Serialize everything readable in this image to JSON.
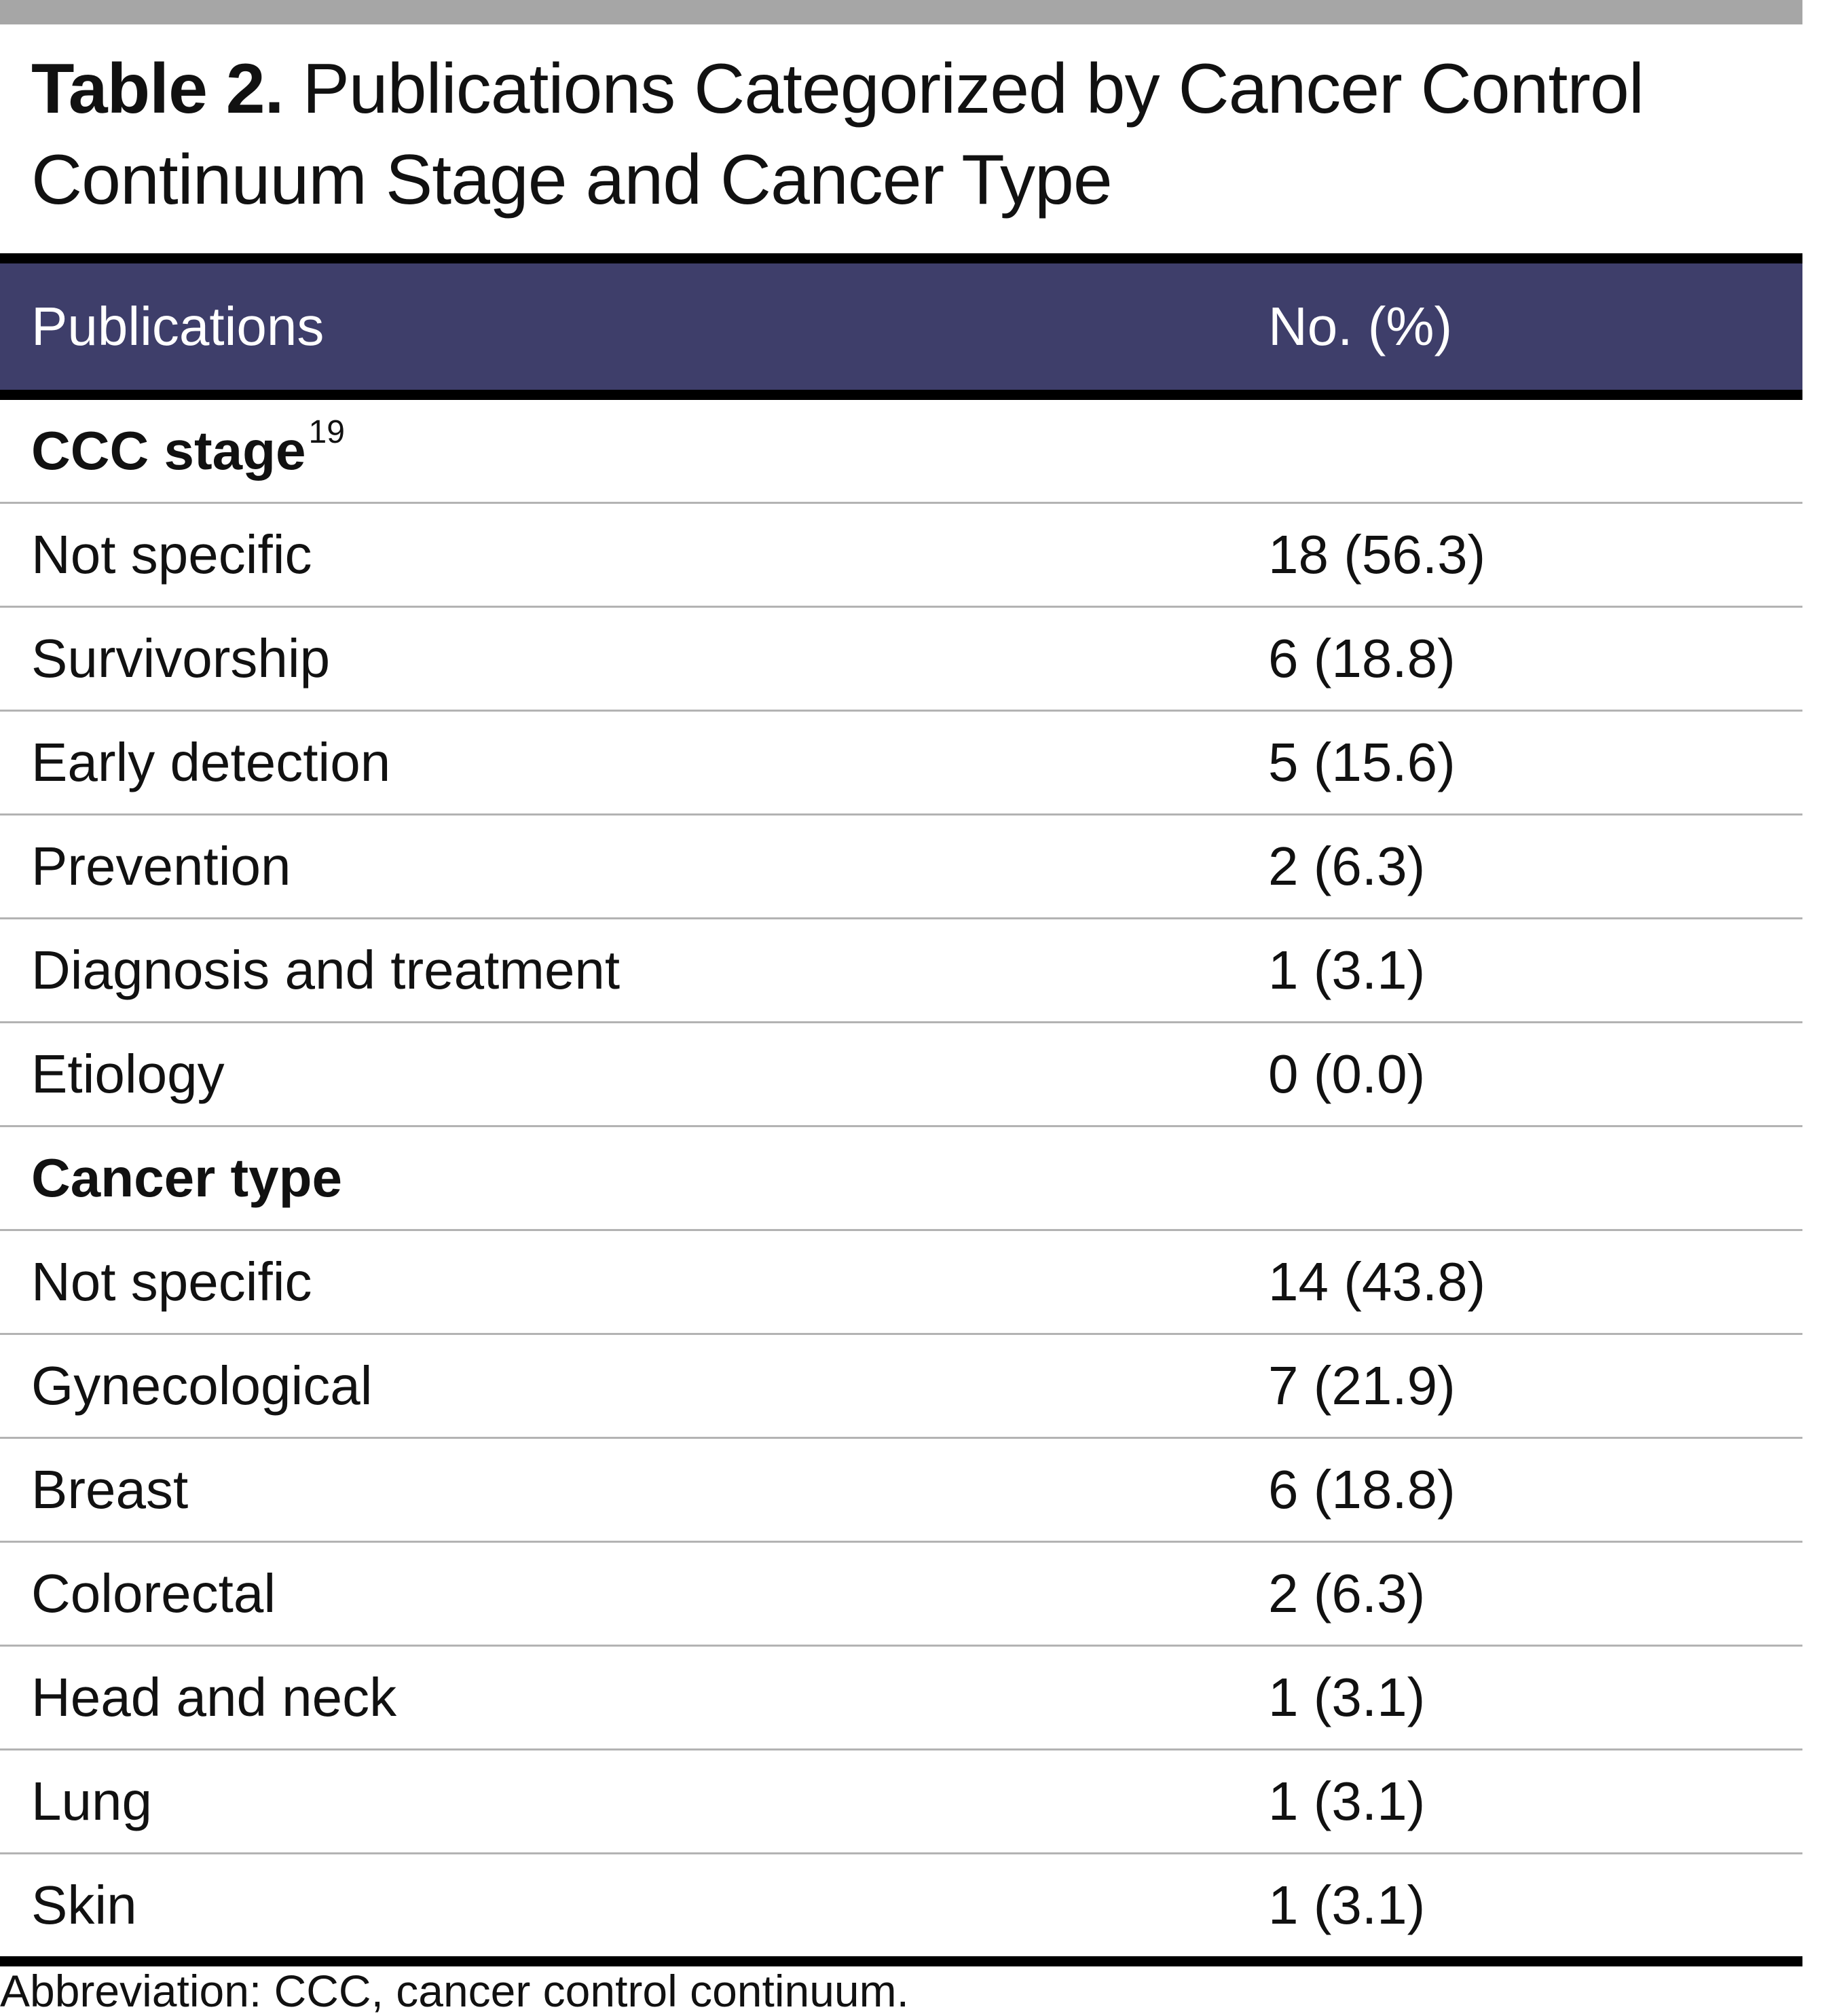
{
  "title": {
    "label": "Table 2.",
    "text": " Publications Categorized by Cancer Control Continuum Stage and Cancer Type"
  },
  "table": {
    "headers": {
      "publications": "Publications",
      "count": "No. (%)"
    },
    "sections": [
      {
        "heading": "CCC stage",
        "heading_sup": "19",
        "rows": [
          {
            "label": "Not specific",
            "value": "18 (56.3)"
          },
          {
            "label": "Survivorship",
            "value": "6 (18.8)"
          },
          {
            "label": "Early detection",
            "value": "5 (15.6)"
          },
          {
            "label": "Prevention",
            "value": "2 (6.3)"
          },
          {
            "label": "Diagnosis and treatment",
            "value": "1 (3.1)"
          },
          {
            "label": "Etiology",
            "value": "0 (0.0)"
          }
        ]
      },
      {
        "heading": "Cancer type",
        "heading_sup": "",
        "rows": [
          {
            "label": "Not specific",
            "value": "14 (43.8)"
          },
          {
            "label": "Gynecological",
            "value": "7 (21.9)"
          },
          {
            "label": "Breast",
            "value": "6 (18.8)"
          },
          {
            "label": "Colorectal",
            "value": "2 (6.3)"
          },
          {
            "label": "Head and neck",
            "value": "1 (3.1)"
          },
          {
            "label": "Lung",
            "value": "1 (3.1)"
          },
          {
            "label": "Skin",
            "value": "1 (3.1)"
          }
        ]
      }
    ]
  },
  "footnote": "Abbreviation: CCC, cancer control continuum.",
  "colors": {
    "header_bg": "#3e3e6a",
    "top_rule": "#a6a6a6",
    "row_divider": "#b3b3b3"
  }
}
